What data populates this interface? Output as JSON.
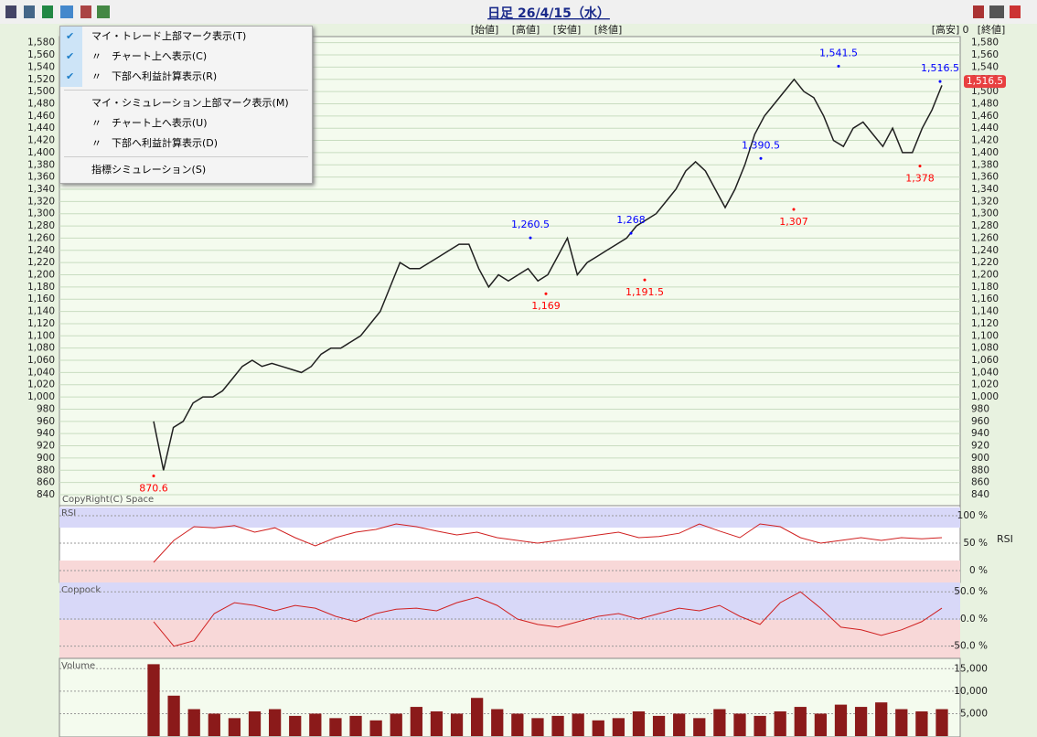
{
  "header": {
    "title": "日足 26/4/15（水）",
    "fields": [
      "[始値]",
      "[高値]",
      "[安値]",
      "[終値]"
    ],
    "right_fields": [
      "[高安]",
      "0",
      "[終値]"
    ],
    "copyright": "CopyRight(C) Space"
  },
  "menu": {
    "items": [
      {
        "label": "マイ・トレード上部マーク表示(T)",
        "checked": true
      },
      {
        "label": "〃　チャート上へ表示(C)",
        "checked": true
      },
      {
        "label": "〃　下部へ利益計算表示(R)",
        "checked": true
      },
      {
        "label": "マイ・シミュレーション上部マーク表示(M)",
        "checked": false
      },
      {
        "label": "〃　チャート上へ表示(U)",
        "checked": false
      },
      {
        "label": "〃　下部へ利益計算表示(D)",
        "checked": false
      },
      {
        "label": "指標シミュレーション(S)",
        "checked": false
      }
    ]
  },
  "chart_data": [
    {
      "type": "line",
      "name": "price",
      "color": "#202020",
      "grid": true,
      "ylim": [
        822,
        1590
      ],
      "yticks": [
        840,
        860,
        880,
        900,
        920,
        940,
        960,
        980,
        {
          "value": 1000,
          "label": "1,000"
        },
        {
          "value": 1020,
          "label": "1,020"
        },
        {
          "value": 1040,
          "label": "1,040"
        },
        {
          "value": 1060,
          "label": "1,060"
        },
        {
          "value": 1080,
          "label": "1,080"
        },
        {
          "value": 1100,
          "label": "1,100"
        },
        {
          "value": 1120,
          "label": "1,120"
        },
        {
          "value": 1140,
          "label": "1,140"
        },
        {
          "value": 1160,
          "label": "1,160"
        },
        {
          "value": 1180,
          "label": "1,180"
        },
        {
          "value": 1200,
          "label": "1,200"
        },
        {
          "value": 1220,
          "label": "1,220"
        },
        {
          "value": 1240,
          "label": "1,240"
        },
        {
          "value": 1260,
          "label": "1,260"
        },
        {
          "value": 1280,
          "label": "1,280"
        },
        {
          "value": 1300,
          "label": "1,300"
        },
        {
          "value": 1320,
          "label": "1,320"
        },
        {
          "value": 1340,
          "label": "1,340"
        },
        {
          "value": 1360,
          "label": "1,360"
        },
        {
          "value": 1380,
          "label": "1,380"
        },
        {
          "value": 1400,
          "label": "1,400"
        },
        {
          "value": 1420,
          "label": "1,420"
        },
        {
          "value": 1440,
          "label": "1,440"
        },
        {
          "value": 1460,
          "label": "1,460"
        },
        {
          "value": 1480,
          "label": "1,480"
        },
        {
          "value": 1500,
          "label": "1,500"
        },
        {
          "value": 1520,
          "label": "1,520"
        },
        {
          "value": 1540,
          "label": "1,540"
        },
        {
          "value": 1560,
          "label": "1,560"
        },
        {
          "value": 1580,
          "label": "1,580"
        }
      ],
      "values": [
        960,
        880,
        950,
        960,
        990,
        1000,
        1000,
        1010,
        1030,
        1050,
        1060,
        1050,
        1055,
        1050,
        1045,
        1040,
        1050,
        1070,
        1080,
        1080,
        1090,
        1100,
        1120,
        1140,
        1180,
        1220,
        1210,
        1210,
        1220,
        1230,
        1240,
        1250,
        1250,
        1210,
        1180,
        1200,
        1190,
        1200,
        1210,
        1190,
        1200,
        1230,
        1260,
        1200,
        1220,
        1230,
        1240,
        1250,
        1260,
        1280,
        1290,
        1300,
        1320,
        1340,
        1370,
        1385,
        1370,
        1340,
        1310,
        1340,
        1380,
        1430,
        1460,
        1480,
        1500,
        1520,
        1500,
        1490,
        1460,
        1420,
        1410,
        1440,
        1450,
        1430,
        1410,
        1440,
        1400,
        1400,
        1440,
        1470,
        1510
      ],
      "annotations": [
        {
          "value": 870.6,
          "label": "870.6",
          "color": "red"
        },
        {
          "value": 1260.5,
          "label": "1,260.5",
          "color": "blue"
        },
        {
          "value": 1169,
          "label": "1,169",
          "color": "red"
        },
        {
          "value": 1268,
          "label": "1,268",
          "color": "blue"
        },
        {
          "value": 1191.5,
          "label": "1,191.5",
          "color": "red"
        },
        {
          "value": 1390.5,
          "label": "1,390.5",
          "color": "blue"
        },
        {
          "value": 1307,
          "label": "1,307",
          "color": "red"
        },
        {
          "value": 1541.5,
          "label": "1,541.5",
          "color": "blue"
        },
        {
          "value": 1378,
          "label": "1,378",
          "color": "red"
        },
        {
          "value": 1516.5,
          "label": "1,516.5",
          "color": "blue"
        }
      ],
      "last": {
        "value": 1516.5,
        "label": "1,516.5"
      }
    },
    {
      "type": "line",
      "name": "RSI",
      "color": "#d02020",
      "ylim": [
        -21.7,
        115
      ],
      "yticks": [
        {
          "value": 100,
          "label": "100 %"
        },
        {
          "value": 50,
          "label": "50 %"
        },
        {
          "value": 0,
          "label": "0 %"
        }
      ],
      "values": [
        15,
        55,
        80,
        78,
        82,
        70,
        78,
        60,
        45,
        60,
        70,
        75,
        85,
        80,
        72,
        65,
        70,
        60,
        55,
        50,
        55,
        60,
        65,
        70,
        60,
        62,
        68,
        85,
        72,
        60,
        85,
        80,
        60,
        50,
        55,
        60,
        55,
        60,
        58,
        60
      ]
    },
    {
      "type": "line",
      "name": "Coppock",
      "color": "#d02020",
      "ylim": [
        -72.4,
        67.2
      ],
      "yticks": [
        {
          "value": 50,
          "label": "50.0 %"
        },
        {
          "value": 0,
          "label": "0.0 %"
        },
        {
          "value": -50,
          "label": "-50.0 %"
        }
      ],
      "values": [
        -5,
        -50,
        -40,
        10,
        30,
        25,
        15,
        25,
        20,
        5,
        -5,
        10,
        18,
        20,
        15,
        30,
        40,
        25,
        0,
        -10,
        -15,
        -5,
        5,
        10,
        0,
        10,
        20,
        15,
        25,
        5,
        -10,
        30,
        50,
        20,
        -15,
        -20,
        -30,
        -20,
        -5,
        20
      ]
    },
    {
      "type": "bar",
      "name": "Volume",
      "color": "#8b1a1a",
      "ylim": [
        -200,
        17300
      ],
      "yticks": [
        {
          "value": 15000,
          "label": "15,000"
        },
        {
          "value": 10000,
          "label": "10,000"
        },
        {
          "value": 5000,
          "label": "5,000"
        }
      ],
      "values": [
        16000,
        9000,
        6000,
        5000,
        4000,
        5500,
        6000,
        4500,
        5000,
        4000,
        4500,
        3500,
        5000,
        6500,
        5500,
        5000,
        8500,
        6000,
        5000,
        4000,
        4500,
        5000,
        3500,
        4000,
        5500,
        4500,
        5000,
        4000,
        6000,
        5000,
        4500,
        5500,
        6500,
        5000,
        7000,
        6500,
        7500,
        6000,
        5500,
        6000
      ]
    }
  ]
}
